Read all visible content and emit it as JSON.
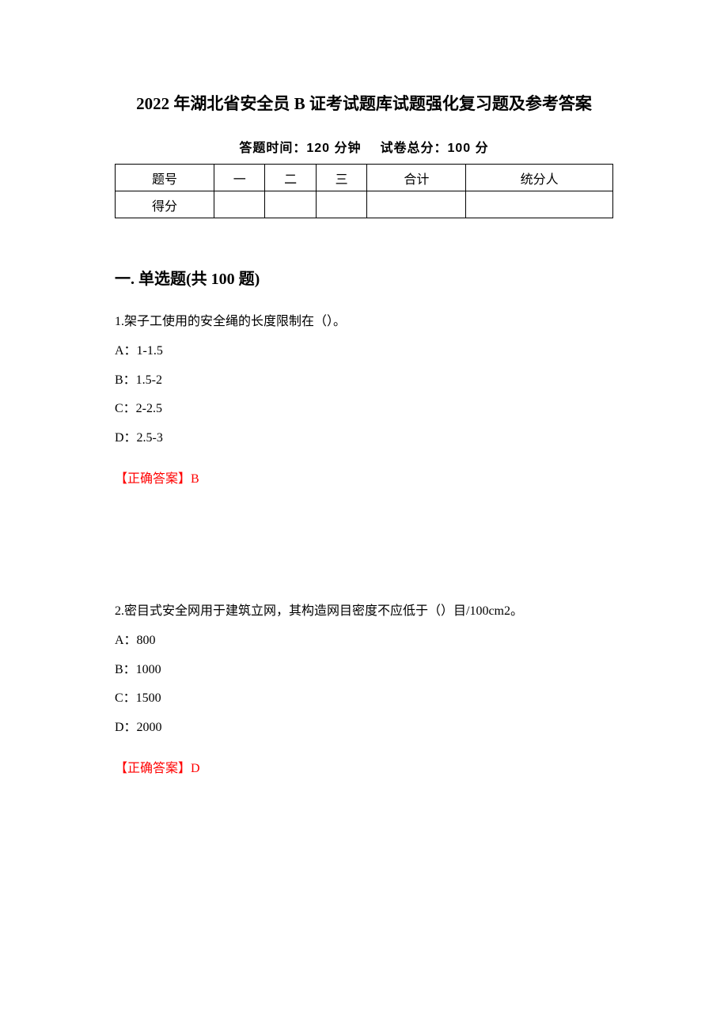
{
  "title": "2022 年湖北省安全员 B 证考试题库试题强化复习题及参考答案",
  "meta": {
    "time_label": "答题时间：120 分钟",
    "total_label": "试卷总分：100 分"
  },
  "table": {
    "row1": [
      "题号",
      "一",
      "二",
      "三",
      "合计",
      "统分人"
    ],
    "row2_label": "得分",
    "column_widths_pct": [
      16,
      16,
      17,
      17,
      17,
      17
    ]
  },
  "section_heading": "一. 单选题(共 100 题)",
  "questions": [
    {
      "number": "1.",
      "text": "架子工使用的安全绳的长度限制在（）。",
      "options": [
        "A：1-1.5",
        "B：1.5-2",
        "C：2-2.5",
        "D：2.5-3"
      ],
      "answer_prefix": "【正确答案】",
      "answer_value": "B"
    },
    {
      "number": "2.",
      "text": "密目式安全网用于建筑立网，其构造网目密度不应低于（）目/100cm2。",
      "options": [
        "A：800",
        "B：1000",
        "C：1500",
        "D：2000"
      ],
      "answer_prefix": "【正确答案】",
      "answer_value": "D"
    }
  ],
  "colors": {
    "text": "#000000",
    "answer": "#ff0000",
    "background": "#ffffff",
    "border": "#000000"
  },
  "fonts": {
    "title_size_pt": 16,
    "body_size_pt": 12,
    "section_size_pt": 15
  }
}
